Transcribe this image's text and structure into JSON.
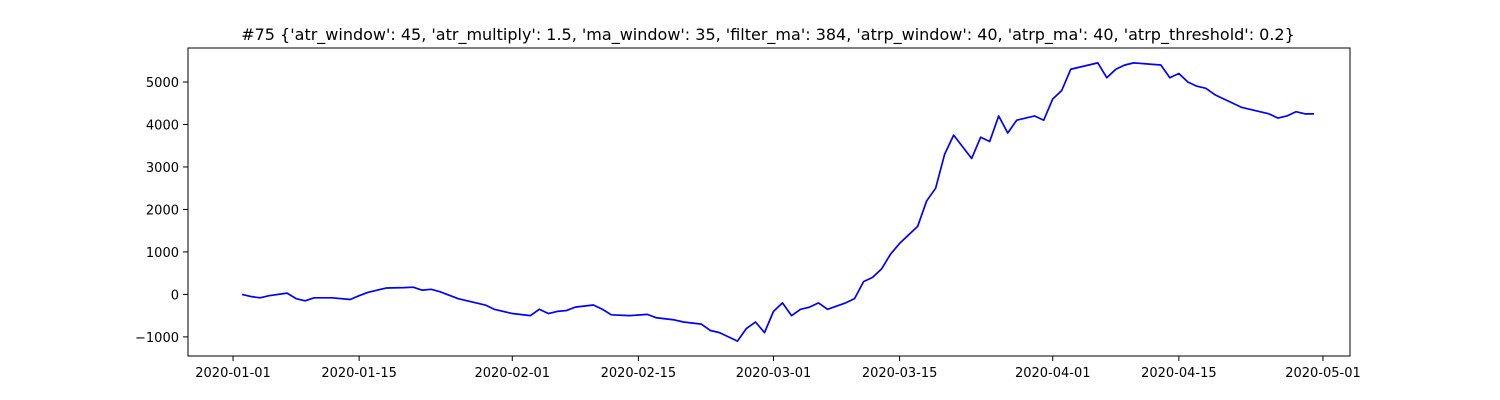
{
  "chart_data": {
    "type": "line",
    "title": "#75 {'atr_window': 45, 'atr_multiply': 1.5, 'ma_window': 35, 'filter_ma': 384, 'atrp_window': 40, 'atrp_ma': 40, 'atrp_threshold': 0.2}",
    "xlabel": "",
    "ylabel": "",
    "xlim": [
      "2019-12-27",
      "2020-05-04"
    ],
    "ylim": [
      -1450,
      5800
    ],
    "x_ticks": [
      "2020-01-01",
      "2020-01-15",
      "2020-02-01",
      "2020-02-15",
      "2020-03-01",
      "2020-03-15",
      "2020-04-01",
      "2020-04-15",
      "2020-05-01"
    ],
    "y_ticks": [
      -1000,
      0,
      1000,
      2000,
      3000,
      4000,
      5000
    ],
    "grid": false,
    "series": [
      {
        "color": "#0000ff",
        "x": [
          "2020-01-02",
          "2020-01-03",
          "2020-01-04",
          "2020-01-05",
          "2020-01-07",
          "2020-01-08",
          "2020-01-09",
          "2020-01-10",
          "2020-01-12",
          "2020-01-14",
          "2020-01-15",
          "2020-01-16",
          "2020-01-17",
          "2020-01-18",
          "2020-01-20",
          "2020-01-21",
          "2020-01-22",
          "2020-01-23",
          "2020-01-24",
          "2020-01-26",
          "2020-01-28",
          "2020-01-29",
          "2020-01-30",
          "2020-02-01",
          "2020-02-03",
          "2020-02-04",
          "2020-02-05",
          "2020-02-06",
          "2020-02-07",
          "2020-02-08",
          "2020-02-10",
          "2020-02-11",
          "2020-02-12",
          "2020-02-14",
          "2020-02-16",
          "2020-02-17",
          "2020-02-19",
          "2020-02-20",
          "2020-02-22",
          "2020-02-23",
          "2020-02-24",
          "2020-02-25",
          "2020-02-26",
          "2020-02-27",
          "2020-02-28",
          "2020-02-29",
          "2020-03-01",
          "2020-03-02",
          "2020-03-03",
          "2020-03-04",
          "2020-03-05",
          "2020-03-06",
          "2020-03-07",
          "2020-03-09",
          "2020-03-10",
          "2020-03-11",
          "2020-03-12",
          "2020-03-13",
          "2020-03-14",
          "2020-03-15",
          "2020-03-17",
          "2020-03-18",
          "2020-03-19",
          "2020-03-20",
          "2020-03-21",
          "2020-03-23",
          "2020-03-24",
          "2020-03-25",
          "2020-03-26",
          "2020-03-27",
          "2020-03-28",
          "2020-03-29",
          "2020-03-30",
          "2020-03-31",
          "2020-04-01",
          "2020-04-02",
          "2020-04-03",
          "2020-04-04",
          "2020-04-06",
          "2020-04-07",
          "2020-04-08",
          "2020-04-09",
          "2020-04-10",
          "2020-04-13",
          "2020-04-14",
          "2020-04-15",
          "2020-04-16",
          "2020-04-17",
          "2020-04-18",
          "2020-04-19",
          "2020-04-20",
          "2020-04-21",
          "2020-04-22",
          "2020-04-23",
          "2020-04-24",
          "2020-04-25",
          "2020-04-26",
          "2020-04-27",
          "2020-04-28",
          "2020-04-29",
          "2020-04-30"
        ],
        "y": [
          0,
          -50,
          -80,
          -30,
          30,
          -100,
          -150,
          -80,
          -80,
          -120,
          -30,
          50,
          100,
          150,
          160,
          170,
          100,
          120,
          60,
          -100,
          -200,
          -250,
          -350,
          -450,
          -500,
          -350,
          -450,
          -400,
          -380,
          -300,
          -250,
          -350,
          -480,
          -500,
          -470,
          -550,
          -600,
          -650,
          -700,
          -850,
          -900,
          -1000,
          -1100,
          -800,
          -650,
          -900,
          -400,
          -200,
          -500,
          -350,
          -300,
          -200,
          -350,
          -200,
          -100,
          300,
          400,
          600,
          950,
          1200,
          1600,
          2200,
          2500,
          3300,
          3750,
          3200,
          3700,
          3600,
          4200,
          3800,
          4100,
          4150,
          4200,
          4100,
          4600,
          4800,
          5300,
          5350,
          5450,
          5100,
          5300,
          5400,
          5450,
          5400,
          5100,
          5200,
          5000,
          4900,
          4850,
          4700,
          4600,
          4500,
          4400,
          4350,
          4300,
          4250,
          4150,
          4200,
          4300,
          4250,
          4250
        ]
      }
    ]
  }
}
